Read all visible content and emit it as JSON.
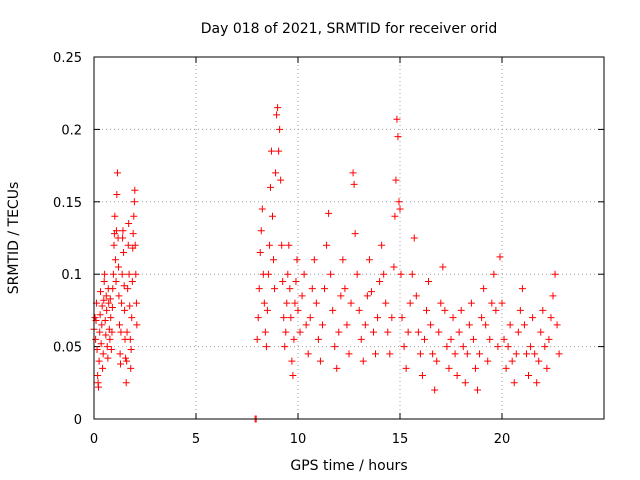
{
  "chart_data": {
    "type": "scatter",
    "title": "Day 018 of 2021, SRMTID for receiver orid",
    "xlabel": "GPS time / hours",
    "ylabel": "SRMTID / TECUs",
    "xlim": [
      0,
      25
    ],
    "ylim": [
      0,
      0.25
    ],
    "xticks": [
      0,
      5,
      10,
      15,
      20
    ],
    "xtick_labels": [
      "0",
      "5",
      "10",
      "15",
      "20"
    ],
    "yticks": [
      0,
      0.05,
      0.1,
      0.15,
      0.2,
      0.25
    ],
    "ytick_labels": [
      "0",
      "0.05",
      "0.1",
      "0.15",
      "0.2",
      "0.25"
    ],
    "grid": true,
    "marker": "plus",
    "color": "#ff0000",
    "series": [
      {
        "values": [
          [
            0.0,
            0.062
          ],
          [
            0.05,
            0.07
          ],
          [
            0.08,
            0.055
          ],
          [
            0.1,
            0.068
          ],
          [
            0.12,
            0.08
          ],
          [
            0.15,
            0.048
          ],
          [
            0.18,
            0.03
          ],
          [
            0.2,
            0.025
          ],
          [
            0.22,
            0.022
          ],
          [
            0.25,
            0.04
          ],
          [
            0.28,
            0.06
          ],
          [
            0.3,
            0.072
          ],
          [
            0.32,
            0.088
          ],
          [
            0.35,
            0.052
          ],
          [
            0.38,
            0.065
          ],
          [
            0.4,
            0.078
          ],
          [
            0.42,
            0.035
          ],
          [
            0.45,
            0.045
          ],
          [
            0.48,
            0.082
          ],
          [
            0.5,
            0.095
          ],
          [
            0.52,
            0.1
          ],
          [
            0.55,
            0.068
          ],
          [
            0.58,
            0.058
          ],
          [
            0.6,
            0.085
          ],
          [
            0.62,
            0.075
          ],
          [
            0.65,
            0.05
          ],
          [
            0.68,
            0.042
          ],
          [
            0.7,
            0.09
          ],
          [
            0.72,
            0.08
          ],
          [
            0.75,
            0.062
          ],
          [
            0.78,
            0.055
          ],
          [
            0.8,
            0.083
          ],
          [
            0.82,
            0.07
          ],
          [
            0.85,
            0.048
          ],
          [
            0.88,
            0.06
          ],
          [
            0.9,
            0.077
          ],
          [
            0.92,
            0.09
          ],
          [
            0.95,
            0.1
          ],
          [
            0.98,
            0.12
          ],
          [
            1.0,
            0.128
          ],
          [
            1.02,
            0.14
          ],
          [
            1.05,
            0.11
          ],
          [
            1.08,
            0.095
          ],
          [
            1.1,
            0.13
          ],
          [
            1.12,
            0.155
          ],
          [
            1.15,
            0.17
          ],
          [
            1.18,
            0.125
          ],
          [
            1.2,
            0.105
          ],
          [
            1.22,
            0.085
          ],
          [
            1.25,
            0.065
          ],
          [
            1.28,
            0.045
          ],
          [
            1.3,
            0.038
          ],
          [
            1.32,
            0.06
          ],
          [
            1.35,
            0.08
          ],
          [
            1.38,
            0.1
          ],
          [
            1.4,
            0.125
          ],
          [
            1.42,
            0.13
          ],
          [
            1.45,
            0.115
          ],
          [
            1.48,
            0.092
          ],
          [
            1.5,
            0.075
          ],
          [
            1.52,
            0.055
          ],
          [
            1.55,
            0.042
          ],
          [
            1.58,
            0.025
          ],
          [
            1.6,
            0.04
          ],
          [
            1.62,
            0.06
          ],
          [
            1.65,
            0.09
          ],
          [
            1.68,
            0.12
          ],
          [
            1.7,
            0.135
          ],
          [
            1.72,
            0.1
          ],
          [
            1.75,
            0.078
          ],
          [
            1.78,
            0.055
          ],
          [
            1.8,
            0.035
          ],
          [
            1.82,
            0.048
          ],
          [
            1.85,
            0.07
          ],
          [
            1.88,
            0.095
          ],
          [
            1.9,
            0.118
          ],
          [
            1.92,
            0.128
          ],
          [
            1.95,
            0.14
          ],
          [
            1.98,
            0.15
          ],
          [
            2.0,
            0.158
          ],
          [
            2.02,
            0.12
          ],
          [
            2.05,
            0.1
          ],
          [
            2.08,
            0.08
          ],
          [
            2.1,
            0.065
          ],
          [
            7.9,
            0.0
          ],
          [
            7.95,
            0.0
          ],
          [
            8.0,
            0.055
          ],
          [
            8.05,
            0.07
          ],
          [
            8.1,
            0.09
          ],
          [
            8.15,
            0.115
          ],
          [
            8.2,
            0.13
          ],
          [
            8.25,
            0.145
          ],
          [
            8.3,
            0.1
          ],
          [
            8.35,
            0.08
          ],
          [
            8.4,
            0.06
          ],
          [
            8.45,
            0.05
          ],
          [
            8.5,
            0.075
          ],
          [
            8.55,
            0.1
          ],
          [
            8.6,
            0.12
          ],
          [
            8.65,
            0.16
          ],
          [
            8.7,
            0.185
          ],
          [
            8.75,
            0.14
          ],
          [
            8.8,
            0.11
          ],
          [
            8.85,
            0.09
          ],
          [
            8.9,
            0.17
          ],
          [
            8.95,
            0.21
          ],
          [
            9.0,
            0.215
          ],
          [
            9.05,
            0.185
          ],
          [
            9.1,
            0.2
          ],
          [
            9.15,
            0.165
          ],
          [
            9.2,
            0.12
          ],
          [
            9.25,
            0.095
          ],
          [
            9.3,
            0.07
          ],
          [
            9.35,
            0.05
          ],
          [
            9.4,
            0.06
          ],
          [
            9.45,
            0.08
          ],
          [
            9.5,
            0.1
          ],
          [
            9.55,
            0.12
          ],
          [
            9.6,
            0.09
          ],
          [
            9.65,
            0.07
          ],
          [
            9.7,
            0.04
          ],
          [
            9.75,
            0.03
          ],
          [
            9.8,
            0.055
          ],
          [
            9.85,
            0.08
          ],
          [
            9.9,
            0.095
          ],
          [
            9.95,
            0.11
          ],
          [
            10.0,
            0.075
          ],
          [
            10.1,
            0.06
          ],
          [
            10.2,
            0.085
          ],
          [
            10.3,
            0.1
          ],
          [
            10.4,
            0.065
          ],
          [
            10.5,
            0.045
          ],
          [
            10.6,
            0.07
          ],
          [
            10.7,
            0.09
          ],
          [
            10.8,
            0.11
          ],
          [
            10.9,
            0.08
          ],
          [
            11.0,
            0.055
          ],
          [
            11.1,
            0.04
          ],
          [
            11.2,
            0.065
          ],
          [
            11.3,
            0.09
          ],
          [
            11.4,
            0.12
          ],
          [
            11.5,
            0.142
          ],
          [
            11.6,
            0.1
          ],
          [
            11.7,
            0.075
          ],
          [
            11.8,
            0.05
          ],
          [
            11.9,
            0.035
          ],
          [
            12.0,
            0.06
          ],
          [
            12.1,
            0.085
          ],
          [
            12.2,
            0.11
          ],
          [
            12.3,
            0.09
          ],
          [
            12.4,
            0.065
          ],
          [
            12.5,
            0.045
          ],
          [
            12.6,
            0.08
          ],
          [
            12.7,
            0.17
          ],
          [
            12.75,
            0.162
          ],
          [
            12.8,
            0.128
          ],
          [
            12.9,
            0.1
          ],
          [
            13.0,
            0.075
          ],
          [
            13.1,
            0.055
          ],
          [
            13.2,
            0.04
          ],
          [
            13.3,
            0.065
          ],
          [
            13.4,
            0.085
          ],
          [
            13.5,
            0.11
          ],
          [
            13.6,
            0.088
          ],
          [
            13.7,
            0.06
          ],
          [
            13.8,
            0.045
          ],
          [
            13.9,
            0.07
          ],
          [
            14.0,
            0.095
          ],
          [
            14.1,
            0.12
          ],
          [
            14.2,
            0.1
          ],
          [
            14.3,
            0.08
          ],
          [
            14.4,
            0.06
          ],
          [
            14.5,
            0.045
          ],
          [
            14.6,
            0.07
          ],
          [
            14.7,
            0.105
          ],
          [
            14.75,
            0.14
          ],
          [
            14.8,
            0.165
          ],
          [
            14.85,
            0.207
          ],
          [
            14.9,
            0.195
          ],
          [
            14.95,
            0.15
          ],
          [
            15.0,
            0.145
          ],
          [
            15.05,
            0.1
          ],
          [
            15.1,
            0.07
          ],
          [
            15.2,
            0.05
          ],
          [
            15.3,
            0.035
          ],
          [
            15.4,
            0.06
          ],
          [
            15.5,
            0.08
          ],
          [
            15.6,
            0.1
          ],
          [
            15.7,
            0.125
          ],
          [
            15.8,
            0.085
          ],
          [
            15.9,
            0.06
          ],
          [
            16.0,
            0.045
          ],
          [
            16.1,
            0.03
          ],
          [
            16.2,
            0.055
          ],
          [
            16.3,
            0.075
          ],
          [
            16.4,
            0.095
          ],
          [
            16.5,
            0.065
          ],
          [
            16.6,
            0.045
          ],
          [
            16.7,
            0.02
          ],
          [
            16.8,
            0.04
          ],
          [
            16.9,
            0.06
          ],
          [
            17.0,
            0.08
          ],
          [
            17.1,
            0.105
          ],
          [
            17.2,
            0.075
          ],
          [
            17.3,
            0.05
          ],
          [
            17.4,
            0.035
          ],
          [
            17.5,
            0.055
          ],
          [
            17.6,
            0.07
          ],
          [
            17.7,
            0.045
          ],
          [
            17.8,
            0.03
          ],
          [
            17.9,
            0.06
          ],
          [
            18.0,
            0.075
          ],
          [
            18.1,
            0.05
          ],
          [
            18.2,
            0.025
          ],
          [
            18.3,
            0.045
          ],
          [
            18.4,
            0.065
          ],
          [
            18.5,
            0.08
          ],
          [
            18.6,
            0.055
          ],
          [
            18.7,
            0.035
          ],
          [
            18.8,
            0.02
          ],
          [
            18.9,
            0.045
          ],
          [
            19.0,
            0.07
          ],
          [
            19.1,
            0.09
          ],
          [
            19.2,
            0.065
          ],
          [
            19.3,
            0.04
          ],
          [
            19.4,
            0.055
          ],
          [
            19.5,
            0.08
          ],
          [
            19.6,
            0.1
          ],
          [
            19.7,
            0.075
          ],
          [
            19.8,
            0.05
          ],
          [
            19.9,
            0.112
          ],
          [
            20.0,
            0.08
          ],
          [
            20.1,
            0.055
          ],
          [
            20.2,
            0.035
          ],
          [
            20.3,
            0.05
          ],
          [
            20.4,
            0.065
          ],
          [
            20.5,
            0.04
          ],
          [
            20.6,
            0.025
          ],
          [
            20.7,
            0.045
          ],
          [
            20.8,
            0.06
          ],
          [
            20.9,
            0.075
          ],
          [
            21.0,
            0.09
          ],
          [
            21.1,
            0.065
          ],
          [
            21.2,
            0.045
          ],
          [
            21.3,
            0.03
          ],
          [
            21.4,
            0.05
          ],
          [
            21.5,
            0.07
          ],
          [
            21.6,
            0.045
          ],
          [
            21.7,
            0.025
          ],
          [
            21.8,
            0.04
          ],
          [
            21.9,
            0.06
          ],
          [
            22.0,
            0.075
          ],
          [
            22.1,
            0.05
          ],
          [
            22.2,
            0.035
          ],
          [
            22.3,
            0.055
          ],
          [
            22.4,
            0.07
          ],
          [
            22.5,
            0.085
          ],
          [
            22.6,
            0.1
          ],
          [
            22.7,
            0.065
          ],
          [
            22.8,
            0.045
          ]
        ]
      }
    ]
  }
}
